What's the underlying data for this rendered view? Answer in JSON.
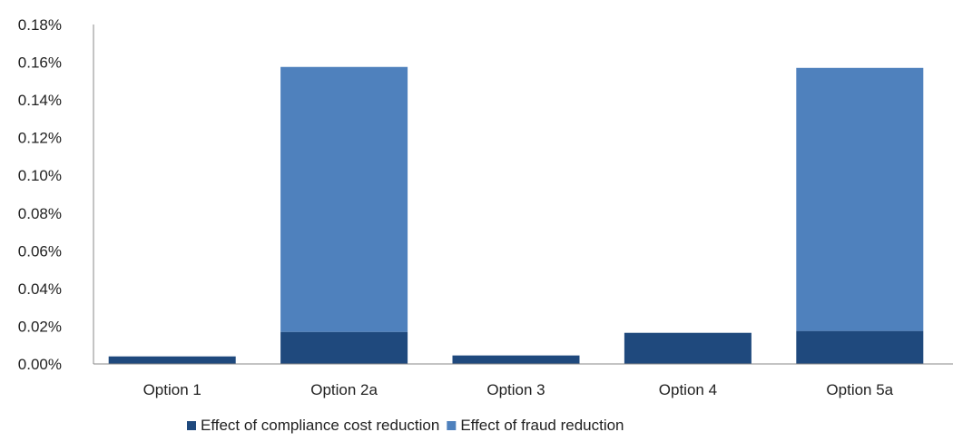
{
  "chart_data": {
    "type": "bar",
    "stacked": true,
    "categories": [
      "Option 1",
      "Option 2a",
      "Option 3",
      "Option 4",
      "Option 5a"
    ],
    "series": [
      {
        "name": "Effect of compliance cost reduction",
        "color": "#1f497d",
        "values": [
          0.004,
          0.017,
          0.0045,
          0.0165,
          0.0175
        ]
      },
      {
        "name": "Effect of fraud reduction",
        "color": "#4f81bd",
        "values": [
          0.0,
          0.1405,
          0.0,
          0.0,
          0.1395
        ]
      }
    ],
    "y_ticks": [
      "0.00%",
      "0.02%",
      "0.04%",
      "0.06%",
      "0.08%",
      "0.10%",
      "0.12%",
      "0.14%",
      "0.16%",
      "0.18%"
    ],
    "ylim": [
      0,
      0.18
    ],
    "y_unit": "%",
    "legend_position": "bottom",
    "grid": false
  }
}
